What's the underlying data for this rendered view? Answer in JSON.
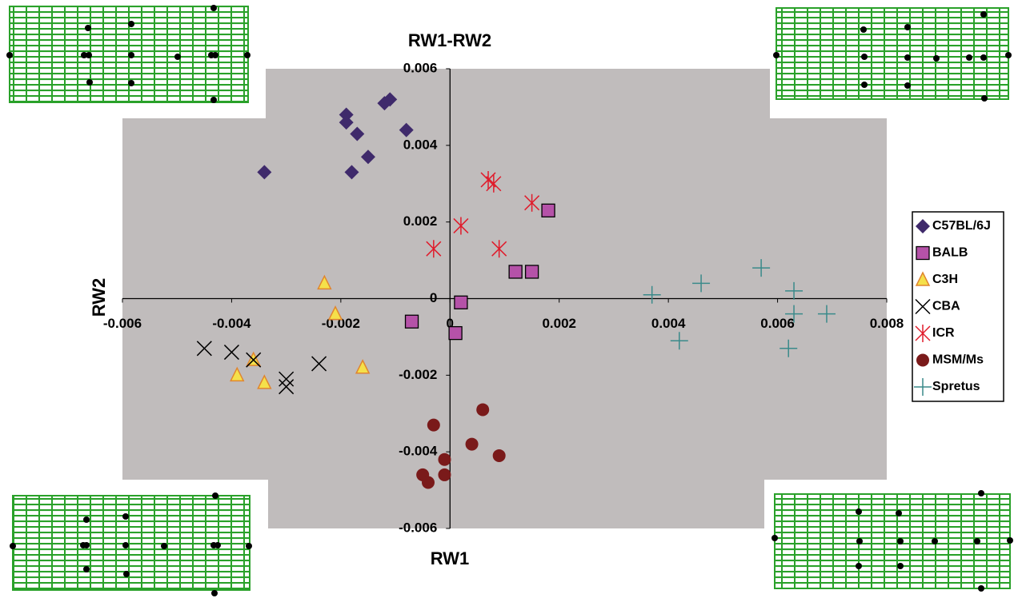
{
  "chart_data": {
    "type": "scatter",
    "title": "RW1-RW2",
    "x_label": "RW1",
    "y_label": "RW2",
    "xlim": [
      -0.006,
      0.008
    ],
    "xticks": [
      -0.006,
      -0.004,
      -0.002,
      0,
      0.002,
      0.004,
      0.006,
      0.008
    ],
    "ylim": [
      -0.006,
      0.006
    ],
    "yticks": [
      -0.006,
      -0.004,
      -0.002,
      0,
      0.002,
      0.004,
      0.006
    ],
    "series": [
      {
        "name": "C57BL/6J",
        "color": "#3f2a6b",
        "marker": "diamond",
        "x": [
          -0.0034,
          -0.0019,
          -0.0019,
          -0.0017,
          -0.0018,
          -0.0015,
          -0.0012,
          -0.0011,
          -0.0008
        ],
        "y": [
          0.0033,
          0.0048,
          0.0046,
          0.0043,
          0.0033,
          0.0037,
          0.0051,
          0.0052,
          0.0044
        ]
      },
      {
        "name": "BALB",
        "color": "#b552a8",
        "marker": "square",
        "x": [
          0.0018,
          0.0012,
          0.0015,
          0.0002,
          -0.0007,
          0.0001
        ],
        "y": [
          0.0023,
          0.0007,
          0.0007,
          -0.0001,
          -0.0006,
          -0.0009
        ]
      },
      {
        "name": "C3H",
        "color": "#f5e04a",
        "marker": "triangle",
        "x": [
          -0.0023,
          -0.0021,
          -0.0036,
          -0.0039,
          -0.0034,
          -0.0016
        ],
        "y": [
          0.0004,
          -0.0004,
          -0.0016,
          -0.002,
          -0.0022,
          -0.0018
        ]
      },
      {
        "name": "CBA",
        "color": "#000000",
        "marker": "x",
        "x": [
          -0.0045,
          -0.004,
          -0.0036,
          -0.003,
          -0.003,
          -0.0024
        ],
        "y": [
          -0.0013,
          -0.0014,
          -0.0016,
          -0.0021,
          -0.0023,
          -0.0017
        ]
      },
      {
        "name": "ICR",
        "color": "#e01b2b",
        "marker": "asterisk",
        "x": [
          0.0007,
          0.0008,
          0.0015,
          0.0002,
          -0.0003,
          0.0009
        ],
        "y": [
          0.0031,
          0.003,
          0.0025,
          0.0019,
          0.0013,
          0.0013
        ]
      },
      {
        "name": "MSM/Ms",
        "color": "#7a1a1a",
        "marker": "circle",
        "x": [
          0.0006,
          -0.0003,
          0.0004,
          0.0009,
          -0.0001,
          -0.0001,
          -0.0005,
          -0.0004
        ],
        "y": [
          -0.0029,
          -0.0033,
          -0.0038,
          -0.0041,
          -0.0042,
          -0.0046,
          -0.0046,
          -0.0048
        ]
      },
      {
        "name": "Spretus",
        "color": "#3a8a8a",
        "marker": "plus",
        "x": [
          0.0037,
          0.0046,
          0.0057,
          0.0063,
          0.0063,
          0.0069,
          0.0042,
          0.0062
        ],
        "y": [
          0.0001,
          0.0004,
          0.0008,
          0.0002,
          -0.0004,
          -0.0004,
          -0.0011,
          -0.0013
        ]
      }
    ]
  }
}
